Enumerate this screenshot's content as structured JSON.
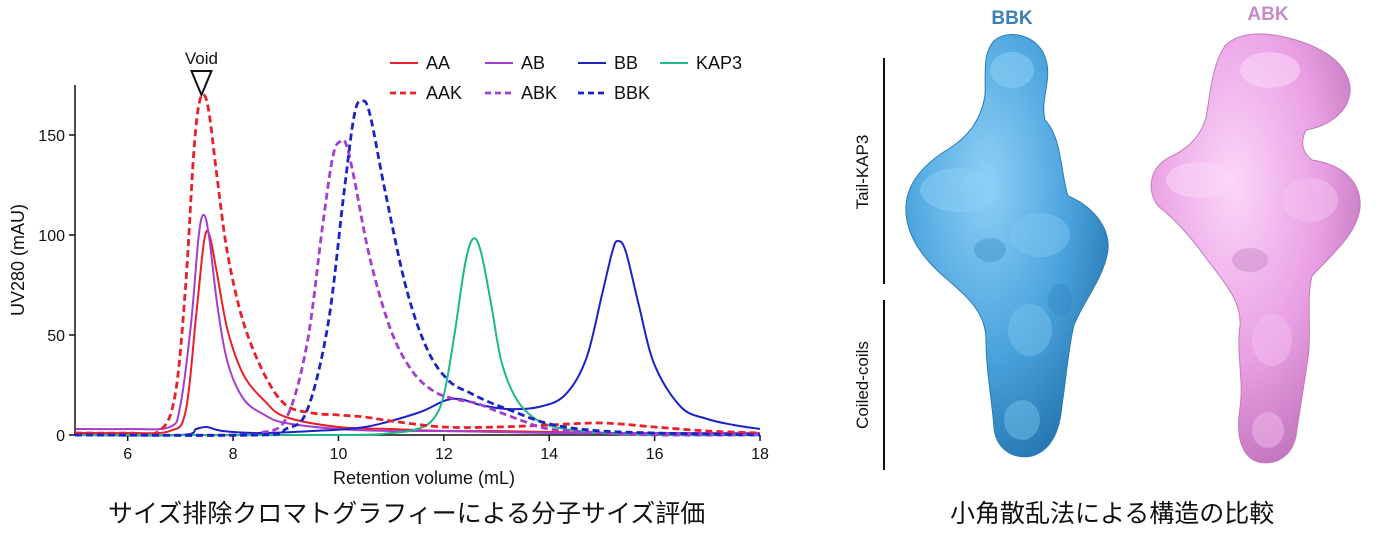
{
  "chart_data": {
    "type": "line",
    "title": "",
    "xlabel": "Retention volume (mL)",
    "ylabel": "UV280 (mAU)",
    "xlim": [
      5,
      18
    ],
    "ylim": [
      0,
      175
    ],
    "xticks": [
      6,
      8,
      10,
      12,
      14,
      16,
      18
    ],
    "yticks": [
      0,
      50,
      100,
      150
    ],
    "grid": false,
    "legend_position": "top-right",
    "annotation": {
      "label": "Void",
      "x": 7.4
    },
    "series": [
      {
        "name": "AA",
        "color": "#e8202a",
        "dash": "solid",
        "x": [
          5,
          6,
          6.8,
          7.1,
          7.3,
          7.45,
          7.55,
          7.7,
          7.9,
          8.2,
          8.6,
          9.0,
          10,
          11,
          12,
          13,
          14,
          15,
          16,
          17,
          18
        ],
        "y": [
          1,
          1,
          2,
          12,
          60,
          97,
          100,
          80,
          52,
          30,
          17,
          9,
          4,
          3,
          2,
          2,
          1.5,
          1,
          1,
          1,
          1
        ]
      },
      {
        "name": "AB",
        "color": "#a23fd0",
        "dash": "solid",
        "x": [
          5,
          6,
          6.8,
          7.0,
          7.2,
          7.35,
          7.45,
          7.55,
          7.7,
          7.9,
          8.2,
          8.6,
          9.0,
          10,
          11,
          12,
          13,
          14,
          15,
          16,
          17,
          18
        ],
        "y": [
          3,
          3,
          4,
          15,
          55,
          100,
          110,
          98,
          65,
          36,
          18,
          10,
          6,
          3,
          2,
          2,
          1.5,
          1,
          1,
          1,
          1,
          1
        ]
      },
      {
        "name": "BB",
        "color": "#1a23c4",
        "dash": "solid",
        "x": [
          5,
          7,
          7.3,
          7.5,
          7.8,
          8.5,
          9.5,
          10.5,
          11.5,
          12.0,
          12.3,
          12.7,
          13.2,
          13.8,
          14.3,
          14.7,
          15.0,
          15.2,
          15.3,
          15.45,
          15.7,
          16.0,
          16.5,
          17,
          17.5,
          18
        ],
        "y": [
          0,
          0,
          3,
          4,
          2,
          1,
          2,
          4,
          11,
          17,
          18,
          15,
          13,
          14,
          20,
          38,
          70,
          92,
          97,
          92,
          65,
          35,
          14,
          8,
          5,
          3
        ]
      },
      {
        "name": "KAP3",
        "color": "#1db88a",
        "dash": "solid",
        "x": [
          5,
          10,
          11,
          11.5,
          11.8,
          12.0,
          12.2,
          12.4,
          12.55,
          12.7,
          12.9,
          13.1,
          13.4,
          13.8,
          14.3,
          15,
          16,
          18
        ],
        "y": [
          0,
          0,
          1,
          3,
          8,
          20,
          50,
          85,
          98,
          92,
          65,
          36,
          17,
          7,
          3,
          1,
          0,
          0
        ]
      },
      {
        "name": "AAK",
        "color": "#e8202a",
        "dash": "dashed",
        "x": [
          5,
          6,
          6.6,
          6.9,
          7.1,
          7.25,
          7.35,
          7.45,
          7.55,
          7.7,
          7.9,
          8.2,
          8.6,
          9.0,
          9.5,
          10,
          10.5,
          11,
          12,
          13,
          14,
          15,
          16,
          17,
          18
        ],
        "y": [
          1,
          1,
          2,
          20,
          75,
          140,
          165,
          170,
          160,
          128,
          90,
          56,
          30,
          15,
          11,
          10,
          9,
          7,
          4,
          4,
          5,
          6,
          4,
          2,
          1
        ]
      },
      {
        "name": "ABK",
        "color": "#a23fd0",
        "dash": "dashed",
        "x": [
          5,
          8,
          8.5,
          9.0,
          9.4,
          9.7,
          9.9,
          10.05,
          10.15,
          10.3,
          10.6,
          11.0,
          11.4,
          11.8,
          12.2,
          12.6,
          13.0,
          13.5,
          14,
          15,
          16,
          18
        ],
        "y": [
          0,
          0,
          1,
          8,
          45,
          105,
          140,
          147,
          145,
          128,
          88,
          52,
          32,
          22,
          18,
          16,
          12,
          7,
          3,
          1,
          0,
          0
        ]
      },
      {
        "name": "BBK",
        "color": "#1a23c4",
        "dash": "dashed",
        "x": [
          5,
          8.5,
          9.0,
          9.4,
          9.8,
          10.1,
          10.3,
          10.45,
          10.6,
          10.9,
          11.3,
          11.7,
          12.1,
          12.5,
          12.9,
          13.3,
          13.8,
          14.3,
          15,
          16,
          18
        ],
        "y": [
          0,
          0,
          3,
          12,
          55,
          120,
          160,
          167,
          160,
          120,
          72,
          42,
          27,
          21,
          16,
          12,
          7,
          4,
          2,
          1,
          0
        ]
      }
    ]
  },
  "structures": {
    "labels": {
      "tail": "Tail-KAP3",
      "coils": "Coiled-coils"
    },
    "models": [
      {
        "name": "BBK",
        "color": "#4aa3dd"
      },
      {
        "name": "ABK",
        "color": "#e9a0e4"
      }
    ]
  },
  "captions": {
    "left": "サイズ排除クロマトグラフィーによる分子サイズ評価",
    "right": "小角散乱法による構造の比較"
  }
}
